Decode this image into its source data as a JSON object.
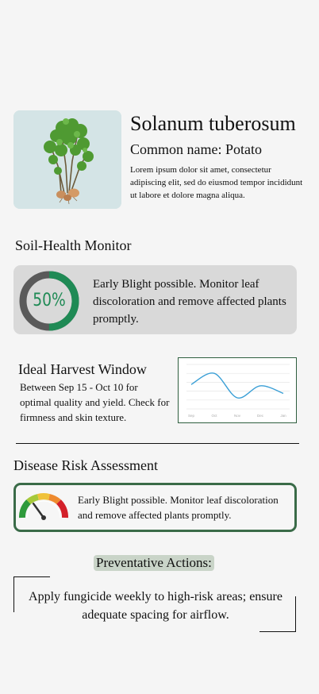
{
  "plant": {
    "scientific_name": "Solanum tuberosum",
    "common_name": "Common name: Potato",
    "description": "Lorem ipsum dolor sit amet, consectetur adipiscing elit, sed do eiusmod tempor incididunt ut labore et dolore magna aliqua.",
    "image_icon": "potato-plant-image"
  },
  "soil": {
    "title": "Soil-Health Monitor",
    "percent_label": "50%",
    "percent_value": 50,
    "message": "Early Blight possible. Monitor leaf discoloration and remove affected plants promptly.",
    "colors": {
      "fill": "#1f8a55",
      "track": "#5a5a5a"
    }
  },
  "harvest": {
    "title": "Ideal Harvest Window",
    "text": "Between Sep 15 - Oct 10 for optimal quality and yield. Check for firmness and skin texture.",
    "chart_data": {
      "type": "line",
      "categories": [
        "Sep",
        "Oct",
        "Nov",
        "Dec",
        "Jan"
      ],
      "series": [
        {
          "values": [
            55,
            80,
            25,
            52,
            35
          ]
        }
      ],
      "ylim": [
        0,
        100
      ],
      "grid": true,
      "line_color": "#3a9fd6"
    }
  },
  "disease": {
    "title": "Disease Risk Assessment",
    "message": "Early Blight possible. Monitor leaf discoloration and remove affected plants promptly.",
    "gauge_icon": "risk-gauge-icon",
    "risk_level": 0.3
  },
  "actions": {
    "title": "Preventative Actions:",
    "text": "Apply fungicide weekly to high-risk areas; ensure adequate spacing for airflow."
  }
}
